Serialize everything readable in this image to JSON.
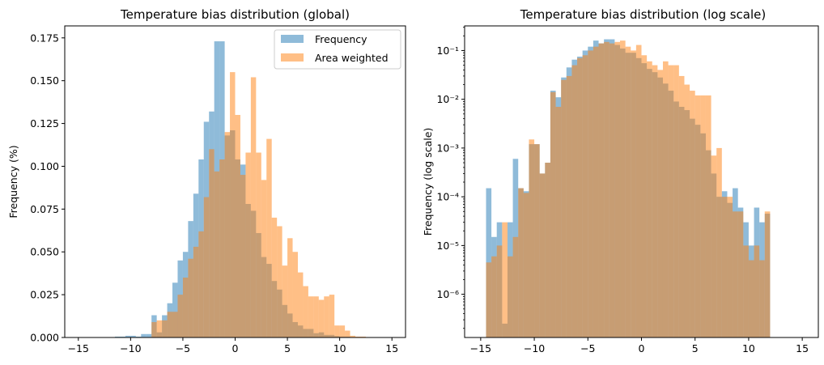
{
  "chart_data": [
    {
      "type": "bar",
      "subtype": "histogram-overlay",
      "title": "Temperature bias distribution (global)",
      "xlabel": "",
      "ylabel": "Frequency (%)",
      "xlim": [
        -16.3,
        16.3
      ],
      "ylim": [
        0,
        0.182
      ],
      "yscale": "linear",
      "x_ticks": [
        -15,
        -10,
        -5,
        0,
        5,
        10,
        15
      ],
      "y_ticks": [
        0.0,
        0.025,
        0.05,
        0.075,
        0.1,
        0.125,
        0.15,
        0.175
      ],
      "y_tick_labels": [
        "0.000",
        "0.025",
        "0.050",
        "0.075",
        "0.100",
        "0.125",
        "0.150",
        "0.175"
      ],
      "legend": "top-right",
      "bin_start": -14.5,
      "bin_width": 0.5,
      "series": [
        {
          "name": "Frequency",
          "color": "#1f77b4",
          "alpha": 0.5,
          "values": [
            0,
            0,
            0,
            0,
            0,
            0,
            0.0005,
            0.0005,
            0.001,
            0.001,
            0.0005,
            0.002,
            0.002,
            0.013,
            0.003,
            0.013,
            0.02,
            0.032,
            0.045,
            0.05,
            0.068,
            0.084,
            0.104,
            0.126,
            0.132,
            0.173,
            0.173,
            0.118,
            0.121,
            0.104,
            0.101,
            0.078,
            0.074,
            0.061,
            0.047,
            0.043,
            0.033,
            0.028,
            0.019,
            0.014,
            0.009,
            0.007,
            0.005,
            0.005,
            0.0025,
            0.003,
            0.0015,
            0.0015,
            0.0008,
            0.0005,
            0.0005,
            0.0002,
            0.0002,
            0.0002,
            0.0001,
            0.0001,
            0.0001,
            0.0001,
            0.0001,
            0.0001
          ]
        },
        {
          "name": "Area weighted",
          "color": "#ff7f0e",
          "alpha": 0.5,
          "values": [
            0,
            0,
            0,
            0,
            0,
            0,
            0,
            0,
            0,
            0,
            0,
            0,
            0,
            0.009,
            0.01,
            0.01,
            0.015,
            0.015,
            0.025,
            0.035,
            0.046,
            0.053,
            0.062,
            0.082,
            0.11,
            0.097,
            0.104,
            0.12,
            0.155,
            0.13,
            0.095,
            0.108,
            0.152,
            0.108,
            0.092,
            0.116,
            0.07,
            0.065,
            0.042,
            0.058,
            0.05,
            0.038,
            0.03,
            0.024,
            0.024,
            0.022,
            0.024,
            0.025,
            0.007,
            0.007,
            0.004,
            0.001,
            0.0005,
            0.0005,
            0.0002,
            0.0001,
            0.0001,
            0.0001,
            0.0001,
            0.0001
          ]
        }
      ]
    },
    {
      "type": "bar",
      "subtype": "histogram-overlay",
      "title": "Temperature bias distribution (log scale)",
      "xlabel": "",
      "ylabel": "Frequency (log scale)",
      "xlim": [
        -16.5,
        16.5
      ],
      "ylim": [
        1.3e-07,
        0.32
      ],
      "yscale": "log",
      "x_ticks": [
        -15,
        -10,
        -5,
        0,
        5,
        10,
        15
      ],
      "y_ticks": [
        1e-06,
        1e-05,
        0.0001,
        0.001,
        0.01,
        0.1
      ],
      "y_tick_labels": [
        "10⁻⁶",
        "10⁻⁵",
        "10⁻⁴",
        "10⁻³",
        "10⁻²",
        "10⁻¹"
      ],
      "bin_start": -14.5,
      "bin_width": 0.5,
      "series": [
        {
          "name": "Frequency",
          "color": "#1f77b4",
          "alpha": 0.5,
          "values": [
            0.00015,
            1.5e-05,
            3e-05,
            2.5e-07,
            3e-05,
            0.0006,
            0.00015,
            0.00013,
            0.0012,
            0.0012,
            0.0003,
            0.0005,
            0.015,
            0.011,
            0.028,
            0.045,
            0.065,
            0.075,
            0.1,
            0.12,
            0.16,
            0.14,
            0.17,
            0.17,
            0.13,
            0.11,
            0.09,
            0.09,
            0.07,
            0.055,
            0.042,
            0.036,
            0.028,
            0.021,
            0.015,
            0.009,
            0.007,
            0.006,
            0.004,
            0.003,
            0.002,
            0.0009,
            0.0003,
            0.0001,
            0.00013,
            7.5e-05,
            0.00015,
            6e-05,
            3e-05,
            1e-05,
            6e-05,
            3e-05,
            4.5e-05
          ]
        },
        {
          "name": "Area weighted",
          "color": "#ff7f0e",
          "alpha": 0.5,
          "values": [
            4.5e-06,
            6e-06,
            1e-05,
            3e-05,
            6e-06,
            1.5e-05,
            0.00015,
            0.00012,
            0.0015,
            0.0012,
            0.0003,
            0.0005,
            0.014,
            0.007,
            0.025,
            0.03,
            0.05,
            0.07,
            0.08,
            0.1,
            0.12,
            0.14,
            0.15,
            0.14,
            0.15,
            0.16,
            0.12,
            0.1,
            0.13,
            0.08,
            0.06,
            0.05,
            0.04,
            0.06,
            0.05,
            0.05,
            0.03,
            0.02,
            0.015,
            0.012,
            0.012,
            0.012,
            0.0007,
            0.001,
            0.0001,
            0.0001,
            5e-05,
            5e-05,
            1e-05,
            5e-06,
            1e-05,
            5e-06,
            5e-05
          ]
        }
      ]
    }
  ]
}
